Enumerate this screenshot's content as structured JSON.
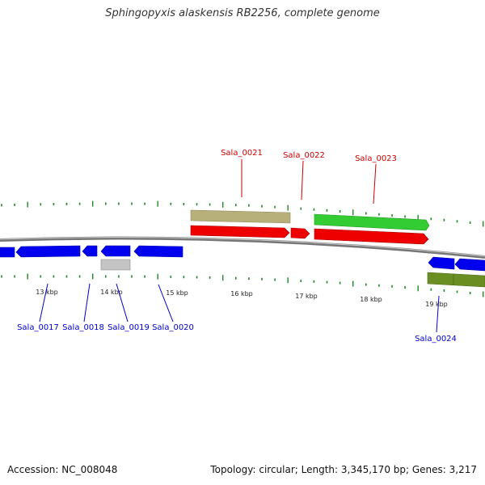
{
  "title": "Sphingopyxis alaskensis RB2256, complete genome",
  "footer": {
    "accession": "Accession: NC_008048",
    "summary": "Topology: circular; Length: 3,345,170 bp; Genes: 3,217"
  },
  "colors": {
    "forward_gene": "#ee0000",
    "reverse_gene": "#0000ee",
    "forward_cds": "#33cc33",
    "forward_feature_tan": "#b8b07a",
    "reverse_feature_grey": "#bbbbbb",
    "reverse_feature_olive": "#6b8e23",
    "forward_label": "#cc0000",
    "reverse_label": "#0000cc",
    "tick": "#228822",
    "backbone": "#888888"
  },
  "scale": {
    "unit": "kbp",
    "labels": [
      "13 kbp",
      "14 kbp",
      "15 kbp",
      "16 kbp",
      "17 kbp",
      "18 kbp",
      "19 kbp"
    ],
    "label_positions_kbp": [
      13,
      14,
      15,
      16,
      17,
      18,
      19
    ]
  },
  "genes_forward": [
    {
      "name": "Sala_0021"
    },
    {
      "name": "Sala_0022"
    },
    {
      "name": "Sala_0023"
    }
  ],
  "genes_reverse": [
    {
      "name": "Sala_0017"
    },
    {
      "name": "Sala_0018"
    },
    {
      "name": "Sala_0019"
    },
    {
      "name": "Sala_0020"
    },
    {
      "name": "Sala_0024"
    }
  ]
}
